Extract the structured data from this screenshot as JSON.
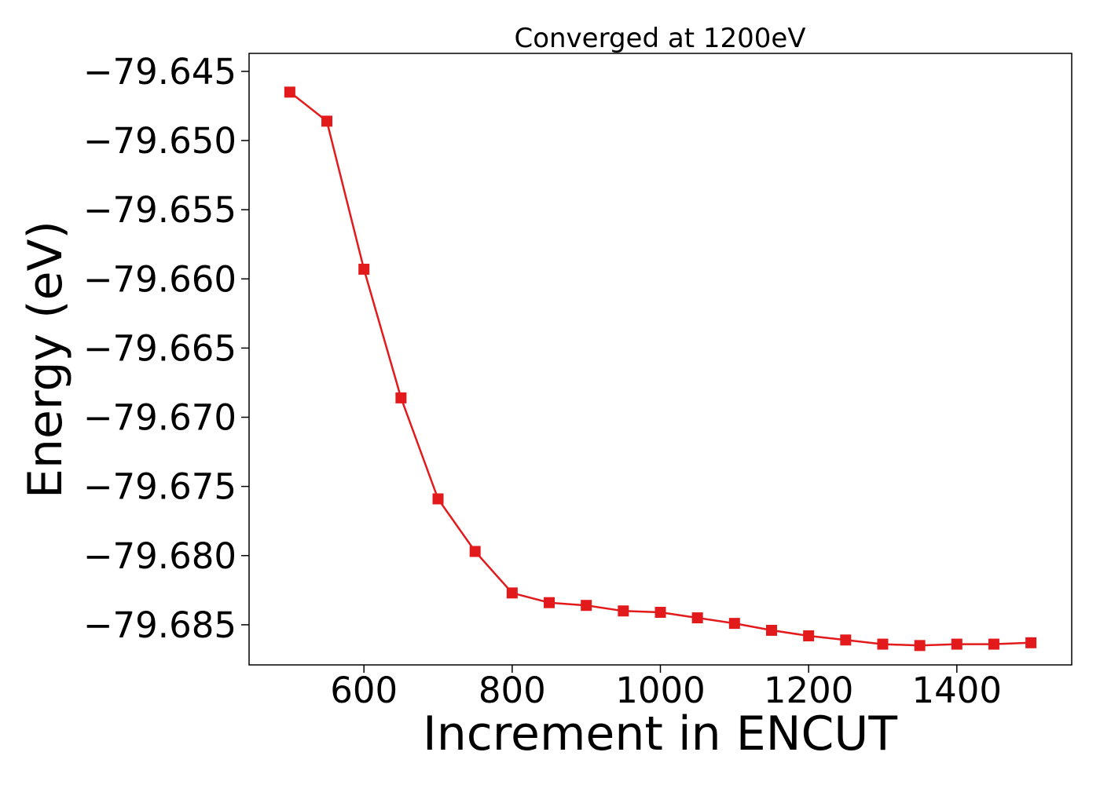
{
  "chart_data": {
    "type": "line",
    "title": "Converged at 1200eV",
    "xlabel": "Increment in ENCUT",
    "ylabel": "Energy (eV)",
    "xlim": [
      445,
      1555
    ],
    "ylim": [
      -79.6879,
      -79.6437
    ],
    "xticks": [
      600,
      800,
      1000,
      1200,
      1400
    ],
    "xtick_labels": [
      "600",
      "800",
      "1000",
      "1200",
      "1400"
    ],
    "yticks": [
      -79.645,
      -79.65,
      -79.655,
      -79.66,
      -79.665,
      -79.67,
      -79.675,
      -79.68,
      -79.685
    ],
    "ytick_labels": [
      "−79.645",
      "−79.650",
      "−79.655",
      "−79.660",
      "−79.665",
      "−79.670",
      "−79.675",
      "−79.680",
      "−79.685"
    ],
    "grid": false,
    "series": [
      {
        "color": "#e31a1c",
        "marker": "square",
        "x": [
          500,
          550,
          600,
          650,
          700,
          750,
          800,
          850,
          900,
          950,
          1000,
          1050,
          1100,
          1150,
          1200,
          1250,
          1300,
          1350,
          1400,
          1450,
          1500
        ],
        "y": [
          -79.6465,
          -79.6486,
          -79.6593,
          -79.6686,
          -79.6759,
          -79.6797,
          -79.6827,
          -79.6834,
          -79.6836,
          -79.684,
          -79.6841,
          -79.6845,
          -79.6849,
          -79.6854,
          -79.6858,
          -79.6861,
          -79.6864,
          -79.6865,
          -79.6864,
          -79.6864,
          -79.6863
        ]
      }
    ]
  }
}
